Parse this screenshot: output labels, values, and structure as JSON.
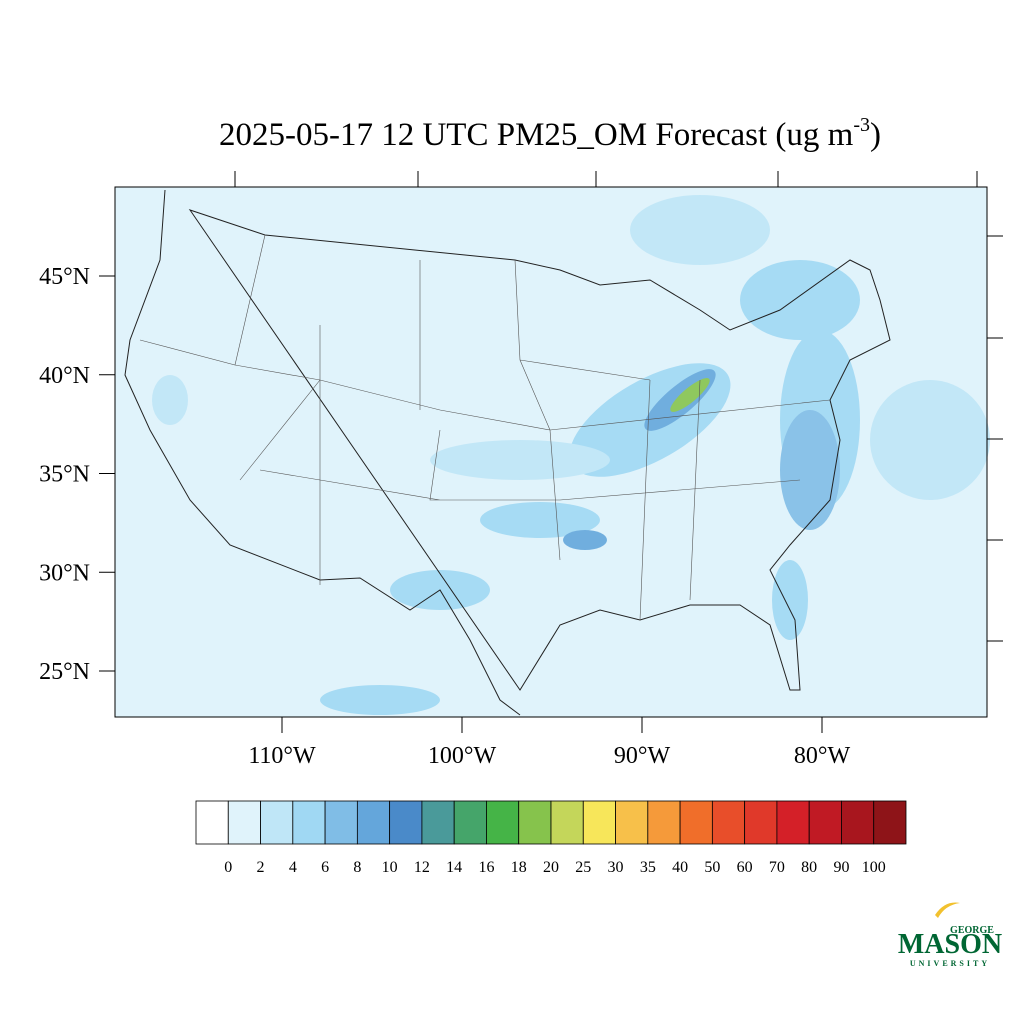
{
  "title": {
    "text": "2025-05-17 12 UTC PM25_OM Forecast (ug m",
    "superscript": "-3",
    "suffix": ")"
  },
  "latitudes": [
    {
      "value": 45,
      "label": "45°N"
    },
    {
      "value": 40,
      "label": "40°N"
    },
    {
      "value": 35,
      "label": "35°N"
    },
    {
      "value": 30,
      "label": "30°N"
    },
    {
      "value": 25,
      "label": "25°N"
    }
  ],
  "longitudes": [
    {
      "value": -110,
      "label": "110°W"
    },
    {
      "value": -100,
      "label": "100°W"
    },
    {
      "value": -90,
      "label": "90°W"
    },
    {
      "value": -80,
      "label": "80°W"
    }
  ],
  "colorbar": {
    "levels": [
      0,
      2,
      4,
      6,
      8,
      10,
      12,
      14,
      16,
      18,
      20,
      25,
      30,
      35,
      40,
      50,
      60,
      70,
      80,
      90,
      100
    ],
    "colors": [
      "#ffffff",
      "#e0f3fb",
      "#bfe6f7",
      "#a0d8f3",
      "#80bde6",
      "#64a6db",
      "#4a8ac9",
      "#4a9a9a",
      "#45a56a",
      "#45b447",
      "#86c34c",
      "#c4d65a",
      "#f7e65a",
      "#f7c04a",
      "#f59a3a",
      "#f06e2a",
      "#e84e2a",
      "#e0392a",
      "#d42028",
      "#c01a24",
      "#a8161e",
      "#8e1418"
    ]
  },
  "logo": {
    "top": "GEORGE",
    "main": "MASON",
    "bottom": "UNIVERSITY"
  }
}
